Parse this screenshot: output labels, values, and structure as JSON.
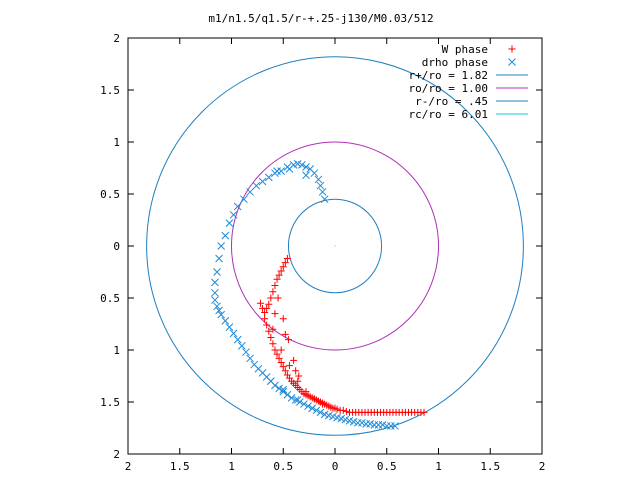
{
  "chart_data": {
    "type": "scatter",
    "title": "m1/n1.5/q1.5/r-+.25-j130/M0.03/512",
    "xlabel": "",
    "ylabel": "",
    "xlim": [
      -2,
      2
    ],
    "ylim": [
      -2,
      2
    ],
    "grid": false,
    "legend_position": "top-right",
    "x_ticks": [
      {
        "value": -2,
        "label": "2"
      },
      {
        "value": -1.5,
        "label": "1.5"
      },
      {
        "value": -1,
        "label": "1"
      },
      {
        "value": -0.5,
        "label": "0.5"
      },
      {
        "value": 0,
        "label": "0"
      },
      {
        "value": 0.5,
        "label": "0.5"
      },
      {
        "value": 1,
        "label": "1"
      },
      {
        "value": 1.5,
        "label": "1.5"
      },
      {
        "value": 2,
        "label": "2"
      }
    ],
    "y_ticks": [
      {
        "value": 2,
        "label": "2"
      },
      {
        "value": 1.5,
        "label": "1.5"
      },
      {
        "value": 1,
        "label": "1"
      },
      {
        "value": 0.5,
        "label": "0.5"
      },
      {
        "value": 0,
        "label": "0"
      },
      {
        "value": -0.5,
        "label": "0.5"
      },
      {
        "value": -1,
        "label": "1"
      },
      {
        "value": -1.5,
        "label": "1.5"
      },
      {
        "value": -2,
        "label": "2"
      }
    ],
    "circles": [
      {
        "name": "r+/ro = 1.82",
        "radius": 1.82,
        "color": "#1f7fbf"
      },
      {
        "name": "ro/ro = 1.00",
        "radius": 1.0,
        "color": "#b030b8"
      },
      {
        "name": "r-/ro = .45",
        "radius": 0.45,
        "color": "#1f7fbf"
      },
      {
        "name": "rc/ro = 6.01",
        "radius": 6.01,
        "color": "#18c4d8"
      }
    ],
    "series": [
      {
        "name": "W phase",
        "marker": "plus",
        "color": "#ff0000",
        "x": [
          -0.46,
          -0.48,
          -0.5,
          -0.52,
          -0.54,
          -0.56,
          -0.58,
          -0.6,
          -0.62,
          -0.64,
          -0.66,
          -0.68,
          -0.7,
          -0.72,
          -0.68,
          -0.66,
          -0.64,
          -0.62,
          -0.6,
          -0.58,
          -0.56,
          -0.54,
          -0.52,
          -0.5,
          -0.48,
          -0.46,
          -0.44,
          -0.42,
          -0.4,
          -0.38,
          -0.36,
          -0.34,
          -0.32,
          -0.3,
          -0.28,
          -0.26,
          -0.24,
          -0.22,
          -0.2,
          -0.18,
          -0.16,
          -0.14,
          -0.12,
          -0.1,
          -0.08,
          -0.06,
          -0.04,
          -0.02,
          0.0,
          0.02,
          0.05,
          0.08,
          0.11,
          0.14,
          0.17,
          0.2,
          0.23,
          0.26,
          0.29,
          0.32,
          0.35,
          0.38,
          0.41,
          0.44,
          0.47,
          0.5,
          0.53,
          0.56,
          0.59,
          0.62,
          0.65,
          0.68,
          0.71,
          0.74,
          0.77,
          0.8,
          0.83,
          0.86,
          -0.55,
          -0.5,
          -0.45,
          -0.4,
          -0.35,
          -0.6,
          -0.52,
          -0.44,
          -0.36,
          -0.28,
          -0.2,
          -0.12,
          -0.58,
          -0.48,
          -0.38
        ],
        "y": [
          -0.12,
          -0.16,
          -0.2,
          -0.24,
          -0.28,
          -0.32,
          -0.38,
          -0.44,
          -0.5,
          -0.56,
          -0.6,
          -0.64,
          -0.6,
          -0.55,
          -0.7,
          -0.76,
          -0.82,
          -0.88,
          -0.94,
          -1.0,
          -1.04,
          -1.08,
          -1.12,
          -1.16,
          -1.2,
          -1.24,
          -1.27,
          -1.3,
          -1.32,
          -1.34,
          -1.36,
          -1.38,
          -1.4,
          -1.42,
          -1.43,
          -1.44,
          -1.45,
          -1.46,
          -1.47,
          -1.48,
          -1.49,
          -1.5,
          -1.51,
          -1.52,
          -1.53,
          -1.54,
          -1.55,
          -1.56,
          -1.56,
          -1.57,
          -1.58,
          -1.58,
          -1.59,
          -1.6,
          -1.6,
          -1.6,
          -1.6,
          -1.6,
          -1.6,
          -1.6,
          -1.6,
          -1.6,
          -1.6,
          -1.6,
          -1.6,
          -1.6,
          -1.6,
          -1.6,
          -1.6,
          -1.6,
          -1.6,
          -1.6,
          -1.6,
          -1.6,
          -1.6,
          -1.6,
          -1.6,
          -1.6,
          -0.5,
          -0.7,
          -0.9,
          -1.1,
          -1.25,
          -0.8,
          -1.0,
          -1.15,
          -1.3,
          -1.4,
          -1.47,
          -1.52,
          -0.65,
          -0.85,
          -1.2
        ]
      },
      {
        "name": "drho phase",
        "marker": "x",
        "color": "#1f8ad8",
        "x": [
          -0.1,
          -0.12,
          -0.14,
          -0.16,
          -0.2,
          -0.24,
          -0.28,
          -0.32,
          -0.36,
          -0.4,
          -0.46,
          -0.52,
          -0.58,
          -0.64,
          -0.7,
          -0.76,
          -0.82,
          -0.88,
          -0.94,
          -0.98,
          -1.02,
          -1.06,
          -1.1,
          -1.12,
          -1.14,
          -1.16,
          -1.16,
          -1.16,
          -1.14,
          -1.12,
          -1.1,
          -1.06,
          -1.02,
          -0.98,
          -0.94,
          -0.9,
          -0.86,
          -0.82,
          -0.78,
          -0.74,
          -0.7,
          -0.66,
          -0.62,
          -0.58,
          -0.54,
          -0.5,
          -0.46,
          -0.42,
          -0.38,
          -0.34,
          -0.3,
          -0.26,
          -0.22,
          -0.18,
          -0.14,
          -0.1,
          -0.06,
          -0.02,
          0.02,
          0.06,
          0.1,
          0.14,
          0.18,
          0.22,
          0.26,
          0.3,
          0.34,
          0.38,
          0.42,
          0.46,
          0.5,
          0.54,
          0.58,
          -0.62,
          -0.5,
          -0.36,
          -0.22,
          -0.28,
          -0.44,
          -0.56
        ],
        "y": [
          0.45,
          0.52,
          0.58,
          0.64,
          0.7,
          0.74,
          0.76,
          0.78,
          0.79,
          0.78,
          0.76,
          0.72,
          0.7,
          0.66,
          0.62,
          0.58,
          0.52,
          0.45,
          0.38,
          0.3,
          0.22,
          0.1,
          0.0,
          -0.12,
          -0.25,
          -0.35,
          -0.45,
          -0.52,
          -0.58,
          -0.62,
          -0.66,
          -0.72,
          -0.78,
          -0.84,
          -0.9,
          -0.96,
          -1.02,
          -1.08,
          -1.14,
          -1.18,
          -1.22,
          -1.26,
          -1.3,
          -1.34,
          -1.37,
          -1.4,
          -1.43,
          -1.46,
          -1.48,
          -1.5,
          -1.52,
          -1.54,
          -1.56,
          -1.58,
          -1.6,
          -1.62,
          -1.63,
          -1.64,
          -1.65,
          -1.66,
          -1.67,
          -1.68,
          -1.69,
          -1.7,
          -1.7,
          -1.71,
          -1.71,
          -1.72,
          -1.72,
          -1.72,
          -1.73,
          -1.73,
          -1.73,
          -1.3,
          -1.38,
          -1.48,
          -1.56,
          0.68,
          0.74,
          0.72
        ]
      }
    ]
  }
}
